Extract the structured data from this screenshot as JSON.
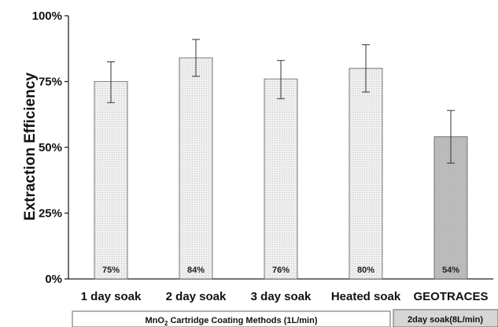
{
  "chart_data": {
    "type": "bar",
    "ylabel": "Extraction Efficiency",
    "ylim": [
      0,
      100
    ],
    "yticks": [
      "0%",
      "25%",
      "50%",
      "75%",
      "100%"
    ],
    "ytick_values": [
      0,
      25,
      50,
      75,
      100
    ],
    "categories": [
      "1 day soak",
      "2 day soak",
      "3 day soak",
      "Heated soak",
      "GEOTRACES"
    ],
    "values": [
      75,
      84,
      76,
      80,
      54
    ],
    "error_low": [
      67,
      77,
      68.5,
      71,
      44
    ],
    "error_high": [
      82.5,
      91,
      83,
      89,
      64
    ],
    "data_labels": [
      "75%",
      "84%",
      "76%",
      "80%",
      "54%"
    ],
    "bar_colors": [
      "#efefef",
      "#efefef",
      "#efefef",
      "#efefef",
      "#b9b9b9"
    ],
    "groups": [
      {
        "label_main": "MnO",
        "label_sub": "2",
        "label_rest": " Cartridge Coating Methods (1L/min)",
        "background": "#ffffff"
      },
      {
        "label": "2day soak(8L/min)",
        "background": "#d6d6d6"
      }
    ],
    "grid": false,
    "legend": "none"
  }
}
